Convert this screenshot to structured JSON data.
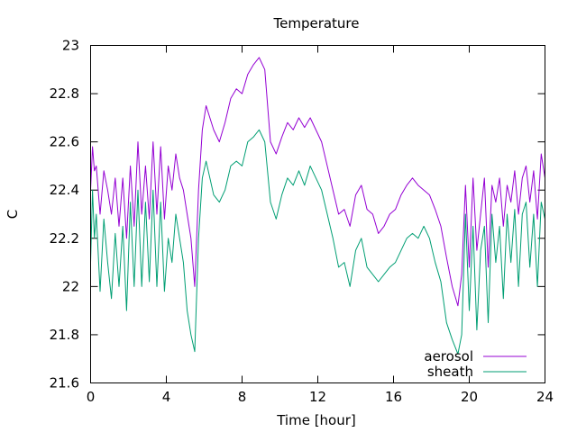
{
  "chart_data": {
    "type": "line",
    "title": "Temperature",
    "xlabel": "Time [hour]",
    "ylabel": "C",
    "xlim": [
      0,
      24
    ],
    "ylim": [
      21.6,
      23
    ],
    "xticks": [
      0,
      4,
      8,
      12,
      16,
      20,
      24
    ],
    "yticks": [
      21.6,
      21.8,
      22,
      22.2,
      22.4,
      22.6,
      22.8,
      23
    ],
    "grid": false,
    "legend": "bottom-right",
    "series": [
      {
        "name": "aerosol",
        "color": "#9400d3",
        "x": [
          0,
          0.1,
          0.2,
          0.3,
          0.5,
          0.7,
          0.9,
          1.1,
          1.3,
          1.5,
          1.7,
          1.9,
          2.1,
          2.3,
          2.5,
          2.7,
          2.9,
          3.1,
          3.3,
          3.5,
          3.7,
          3.9,
          4.1,
          4.3,
          4.5,
          4.7,
          4.9,
          5.1,
          5.3,
          5.5,
          5.7,
          5.9,
          6.1,
          6.3,
          6.5,
          6.8,
          7.1,
          7.4,
          7.7,
          8.0,
          8.3,
          8.6,
          8.9,
          9.2,
          9.5,
          9.8,
          10.1,
          10.4,
          10.7,
          11.0,
          11.3,
          11.6,
          11.9,
          12.2,
          12.5,
          12.8,
          13.1,
          13.4,
          13.7,
          14.0,
          14.3,
          14.6,
          14.9,
          15.2,
          15.5,
          15.8,
          16.1,
          16.4,
          16.7,
          17.0,
          17.3,
          17.6,
          17.9,
          18.2,
          18.5,
          18.8,
          19.1,
          19.4,
          19.6,
          19.8,
          20.0,
          20.2,
          20.4,
          20.6,
          20.8,
          21.0,
          21.2,
          21.4,
          21.6,
          21.8,
          22.0,
          22.2,
          22.4,
          22.6,
          22.8,
          23.0,
          23.2,
          23.4,
          23.6,
          23.8,
          24.0
        ],
        "y": [
          22.4,
          22.58,
          22.48,
          22.5,
          22.3,
          22.48,
          22.4,
          22.3,
          22.45,
          22.25,
          22.45,
          22.2,
          22.5,
          22.25,
          22.6,
          22.3,
          22.5,
          22.28,
          22.6,
          22.3,
          22.58,
          22.28,
          22.5,
          22.4,
          22.55,
          22.45,
          22.4,
          22.3,
          22.2,
          22.0,
          22.4,
          22.65,
          22.75,
          22.7,
          22.65,
          22.6,
          22.68,
          22.78,
          22.82,
          22.8,
          22.88,
          22.92,
          22.95,
          22.9,
          22.6,
          22.55,
          22.62,
          22.68,
          22.65,
          22.7,
          22.66,
          22.7,
          22.65,
          22.6,
          22.5,
          22.4,
          22.3,
          22.32,
          22.25,
          22.38,
          22.42,
          22.32,
          22.3,
          22.22,
          22.25,
          22.3,
          22.32,
          22.38,
          22.42,
          22.45,
          22.42,
          22.4,
          22.38,
          22.32,
          22.25,
          22.12,
          22.0,
          21.92,
          22.05,
          22.42,
          22.08,
          22.45,
          22.15,
          22.3,
          22.45,
          22.08,
          22.42,
          22.35,
          22.45,
          22.25,
          22.42,
          22.35,
          22.48,
          22.3,
          22.45,
          22.5,
          22.35,
          22.48,
          22.28,
          22.55,
          22.45
        ]
      },
      {
        "name": "sheath",
        "color": "#009e73",
        "x": [
          0,
          0.1,
          0.2,
          0.3,
          0.5,
          0.7,
          0.9,
          1.1,
          1.3,
          1.5,
          1.7,
          1.9,
          2.1,
          2.3,
          2.5,
          2.7,
          2.9,
          3.1,
          3.3,
          3.5,
          3.7,
          3.9,
          4.1,
          4.3,
          4.5,
          4.7,
          4.9,
          5.1,
          5.3,
          5.5,
          5.7,
          5.9,
          6.1,
          6.3,
          6.5,
          6.8,
          7.1,
          7.4,
          7.7,
          8.0,
          8.3,
          8.6,
          8.9,
          9.2,
          9.5,
          9.8,
          10.1,
          10.4,
          10.7,
          11.0,
          11.3,
          11.6,
          11.9,
          12.2,
          12.5,
          12.8,
          13.1,
          13.4,
          13.7,
          14.0,
          14.3,
          14.6,
          14.9,
          15.2,
          15.5,
          15.8,
          16.1,
          16.4,
          16.7,
          17.0,
          17.3,
          17.6,
          17.9,
          18.2,
          18.5,
          18.8,
          19.1,
          19.4,
          19.6,
          19.8,
          20.0,
          20.2,
          20.4,
          20.6,
          20.8,
          21.0,
          21.2,
          21.4,
          21.6,
          21.8,
          22.0,
          22.2,
          22.4,
          22.6,
          22.8,
          23.0,
          23.2,
          23.4,
          23.6,
          23.8,
          24.0
        ],
        "y": [
          22.1,
          22.4,
          22.2,
          22.3,
          21.98,
          22.28,
          22.1,
          21.95,
          22.22,
          22.0,
          22.25,
          21.9,
          22.35,
          22.0,
          22.4,
          22.0,
          22.35,
          22.02,
          22.4,
          22.0,
          22.35,
          21.98,
          22.2,
          22.1,
          22.3,
          22.2,
          22.1,
          21.9,
          21.8,
          21.73,
          22.2,
          22.45,
          22.52,
          22.45,
          22.38,
          22.35,
          22.4,
          22.5,
          22.52,
          22.5,
          22.6,
          22.62,
          22.65,
          22.6,
          22.35,
          22.28,
          22.38,
          22.45,
          22.42,
          22.48,
          22.42,
          22.5,
          22.45,
          22.4,
          22.3,
          22.2,
          22.08,
          22.1,
          22.0,
          22.15,
          22.2,
          22.08,
          22.05,
          22.02,
          22.05,
          22.08,
          22.1,
          22.15,
          22.2,
          22.22,
          22.2,
          22.25,
          22.2,
          22.1,
          22.02,
          21.85,
          21.78,
          21.72,
          21.8,
          22.3,
          21.9,
          22.25,
          21.82,
          22.15,
          22.25,
          21.85,
          22.3,
          22.1,
          22.25,
          21.95,
          22.3,
          22.1,
          22.32,
          22.0,
          22.3,
          22.35,
          22.08,
          22.3,
          22.0,
          22.35,
          22.28
        ]
      }
    ]
  }
}
